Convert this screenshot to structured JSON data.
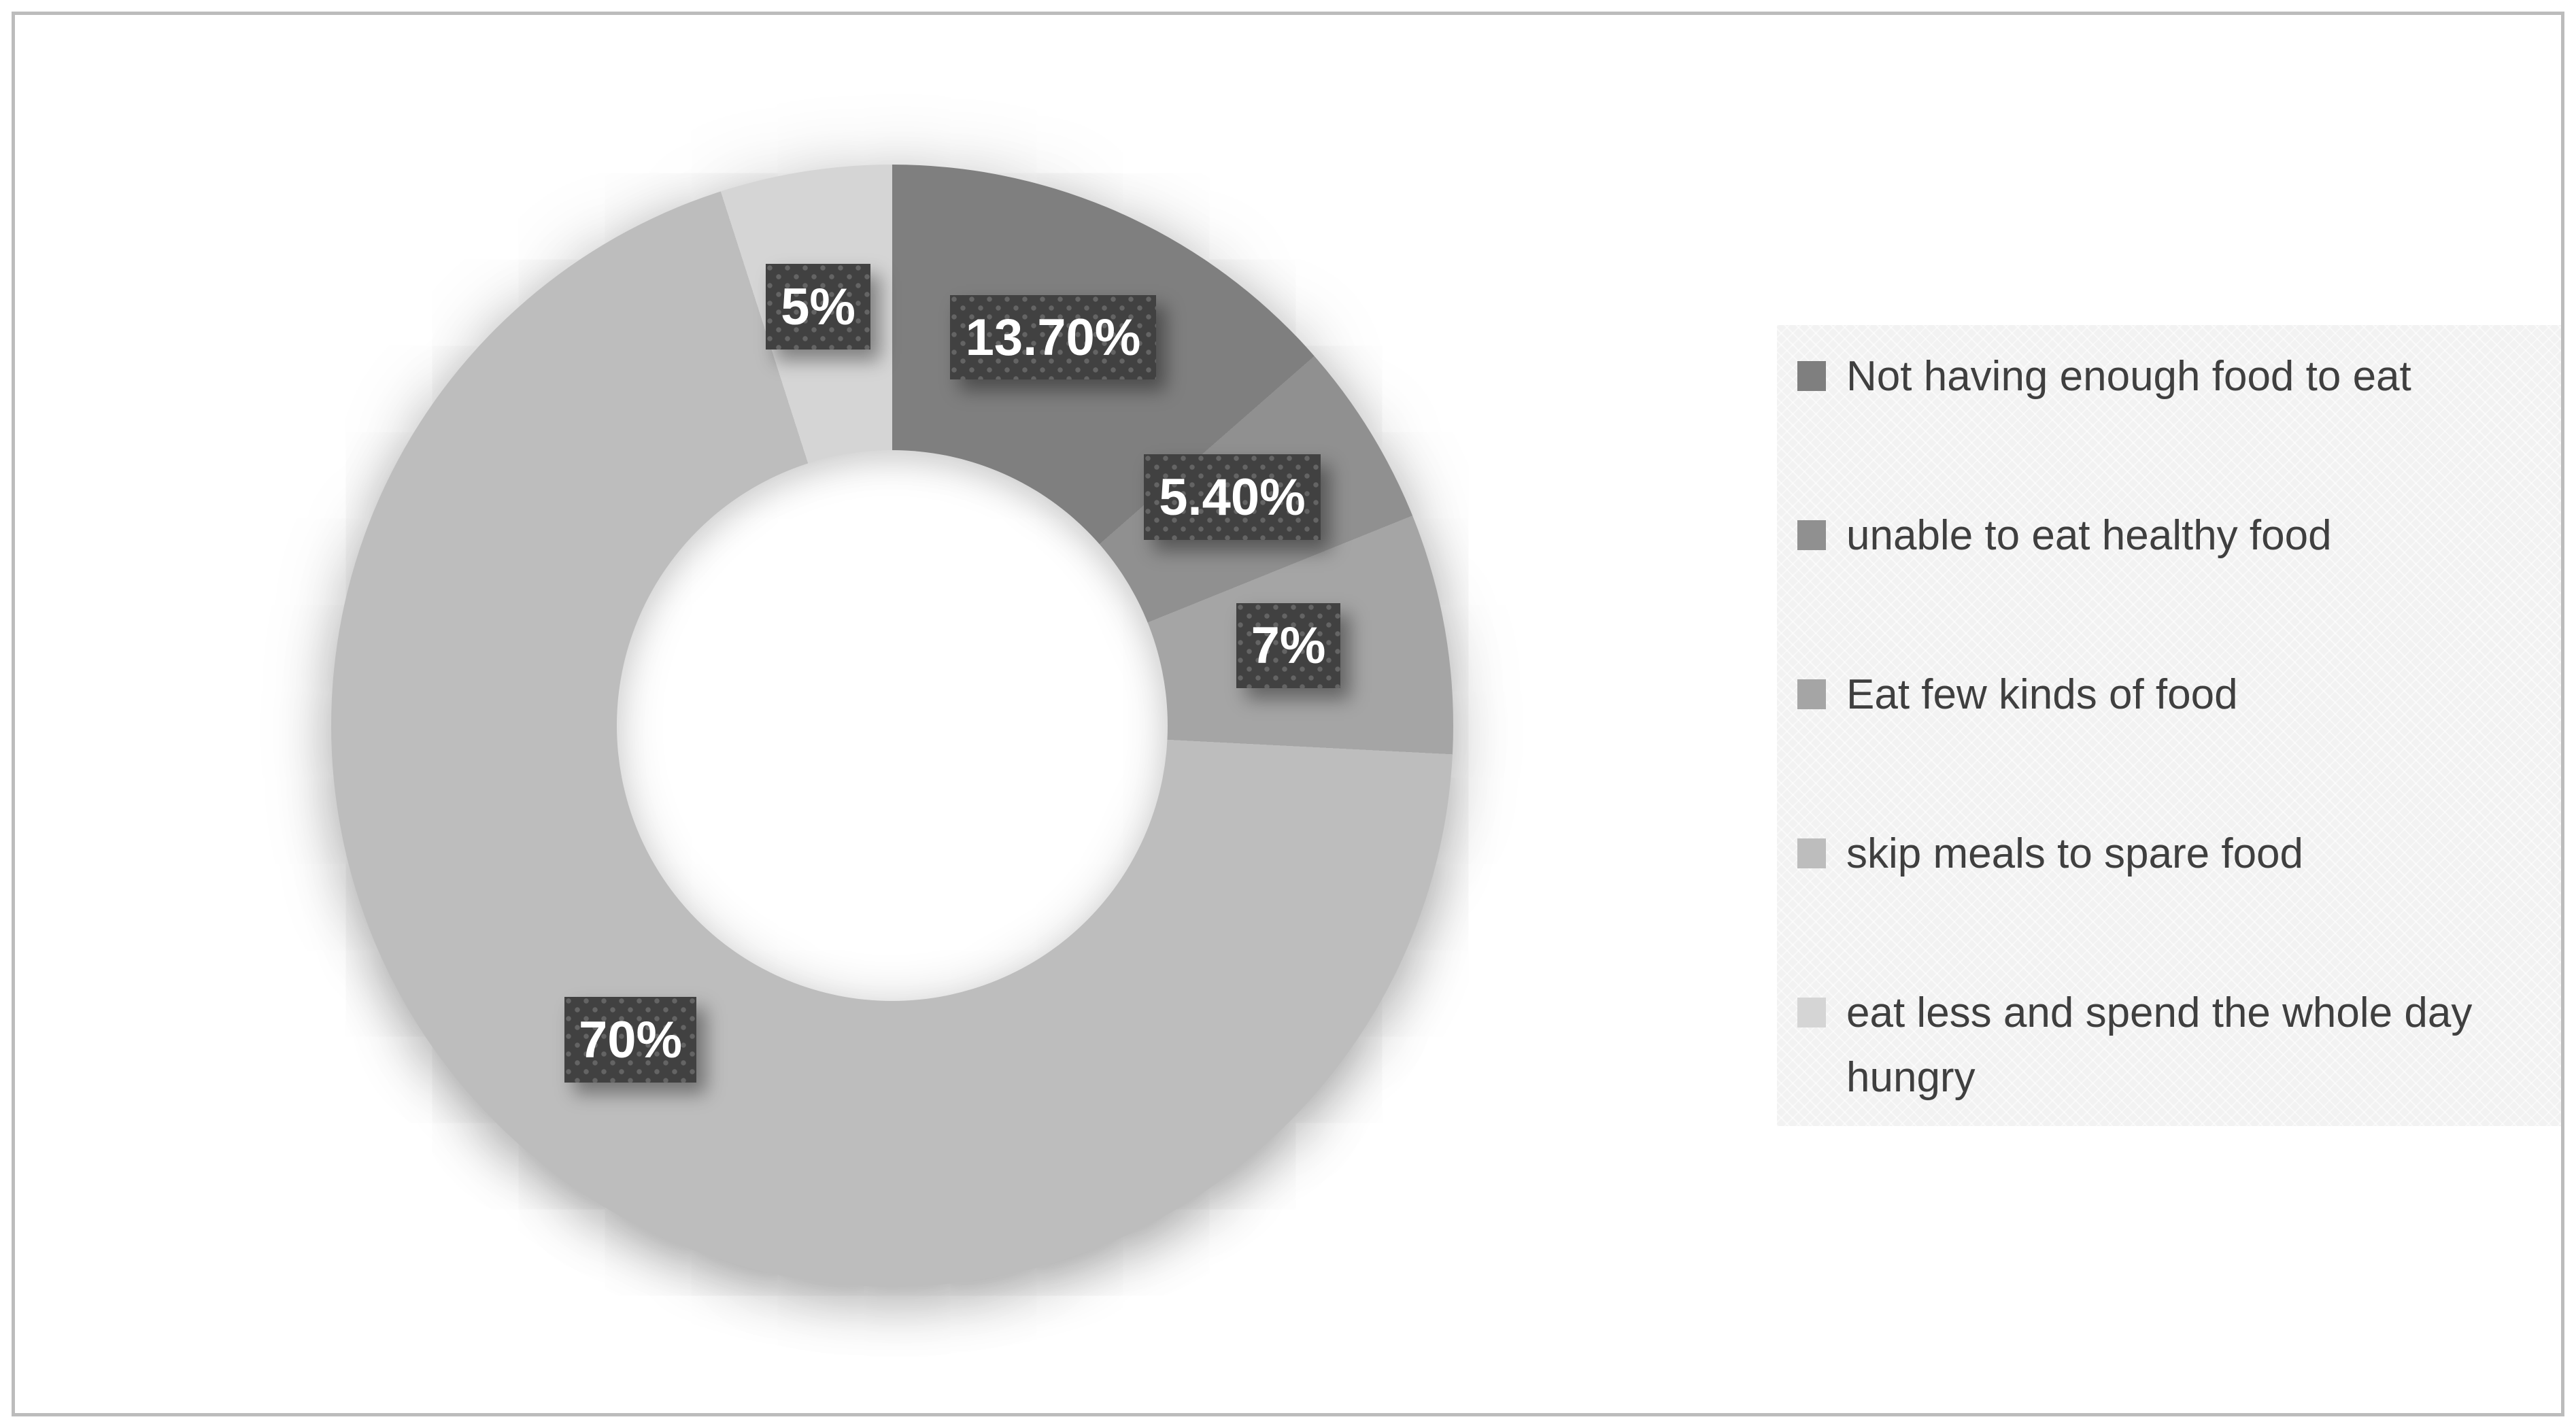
{
  "figure": {
    "frame_border_color": "#bcbcbc",
    "background_color": "#ffffff"
  },
  "chart_data": {
    "type": "pie",
    "subtype": "donut",
    "direction": "clockwise",
    "start_angle_deg": 0,
    "hole_ratio": 0.49,
    "categories": [
      "Not having enough food to eat",
      "unable to eat healthy food",
      "Eat few kinds of food",
      "skip meals to spare food",
      "eat less and spend the whole day hungry"
    ],
    "values": [
      13.7,
      5.4,
      7,
      70,
      5
    ],
    "data_labels": [
      "13.70%",
      "5.40%",
      "7%",
      "70%",
      "5%"
    ],
    "colors": [
      "#7f7f7f",
      "#909090",
      "#a5a5a5",
      "#bdbdbd",
      "#d5d5d5"
    ],
    "label_box": {
      "background": "#414141",
      "dot_color": "#646464",
      "text_color": "#ffffff"
    },
    "legend": {
      "position": "right",
      "background": "#f2f2f2",
      "text_color": "#3f3f3f"
    }
  }
}
